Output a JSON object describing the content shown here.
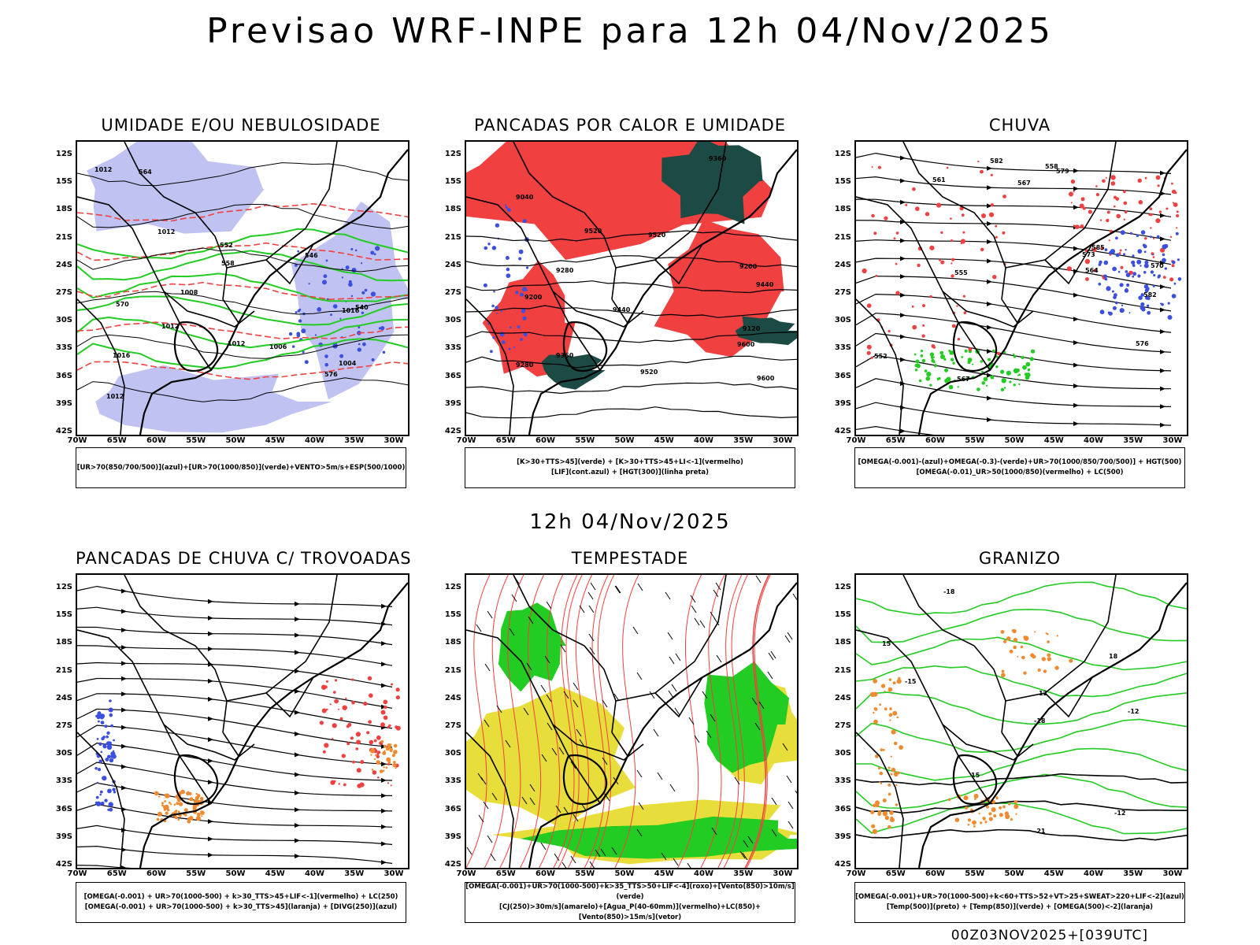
{
  "title": "Previsao WRF-INPE  para 12h 04/Nov/2025",
  "subtitle": "12h 04/Nov/2025",
  "footer": "00Z03NOV2025+[039UTC]",
  "lat_ticks": [
    "12S",
    "15S",
    "18S",
    "21S",
    "24S",
    "27S",
    "30S",
    "33S",
    "36S",
    "39S",
    "42S"
  ],
  "lon_ticks": [
    "70W",
    "65W",
    "60W",
    "55W",
    "50W",
    "45W",
    "40W",
    "35W",
    "30W"
  ],
  "colors": {
    "blue": "#3b4fe0",
    "lightblue": "#b9bdf0",
    "green": "#22cc22",
    "red": "#f04040",
    "darkgreen": "#1c4a44",
    "orange": "#f08a30",
    "yellow": "#e6dc30",
    "purple": "#a020d0"
  },
  "panels": [
    {
      "title": "UMIDADE E/OU NEBULOSIDADE",
      "legend": [
        "[UR>70(850/700/500)](azul)+[UR>70(1000/850)](verde)+VENTO>5m/s+ESP(500/1000)"
      ],
      "labels": [
        "1012",
        "1012",
        "1016",
        "1012",
        "1008",
        "1004",
        "1006",
        "1012",
        "1016",
        "1012",
        "570",
        "576",
        "564",
        "558",
        "552",
        "546",
        "540"
      ]
    },
    {
      "title": "PANCADAS POR CALOR E UMIDADE",
      "legend": [
        "[K>30+TTS>45](verde) + [K>30+TTS>45+LI<-1](vermelho)",
        "[LIF](cont.azul) + [HGT(300)](linha preta)"
      ],
      "labels": [
        "9600",
        "9600",
        "9520",
        "9520",
        "9520",
        "9440",
        "9440",
        "9360",
        "9360",
        "9280",
        "9280",
        "9200",
        "9200",
        "9120",
        "9040"
      ]
    },
    {
      "title": "CHUVA",
      "legend": [
        "[OMEGA(-0.001)-(azul)+OMEGA(-0.3)-(verde)+UR>70(1000/850/700/500)] + HGT(500)",
        "[OMEGA(-0.01)_UR>50(1000/850)(vermelho) + LC(500)"
      ],
      "labels": [
        "582",
        "585",
        "582",
        "579",
        "576",
        "573",
        "570",
        "567",
        "567",
        "564",
        "561",
        "558",
        "555",
        "552"
      ]
    },
    {
      "title": "PANCADAS DE CHUVA C/ TROVOADAS",
      "legend": [
        "[OMEGA(-0.001) + UR>70(1000-500) + k>30_TTS>45+LIF<-1](vermelho) + LC(250)",
        "[OMEGA(-0.001) + UR>70(1000-500) + k>30_TTS>45](laranja) + [DIVG(250)](azul)"
      ],
      "labels": []
    },
    {
      "title": "TEMPESTADE",
      "legend": [
        "[OMEGA(-0.001)+UR>70(1000-500)+k>35_TTS>50+LIF<-4](roxo)+[Vento(850)>10m/s](verde)",
        "[CJ(250)>30m/s](amarelo)+[Agua_P(40-60mm)](vermelho)+LC(850)+[Vento(850)>15m/s](vetor)"
      ],
      "labels": []
    },
    {
      "title": "GRANIZO",
      "legend": [
        "[OMEGA(-0.001)+UR>70(1000-500)+k<60+TTS>52+VT>25+SWEAT>220+LIF<-2](azul)",
        "[Temp(500)](preto) + [Temp(850)](verde) + [OMEGA(500)<-2](laranja)"
      ],
      "labels": [
        "-12",
        "-12",
        "-15",
        "-18",
        "-18",
        "-21",
        "15",
        "18",
        "15",
        "12"
      ]
    }
  ]
}
